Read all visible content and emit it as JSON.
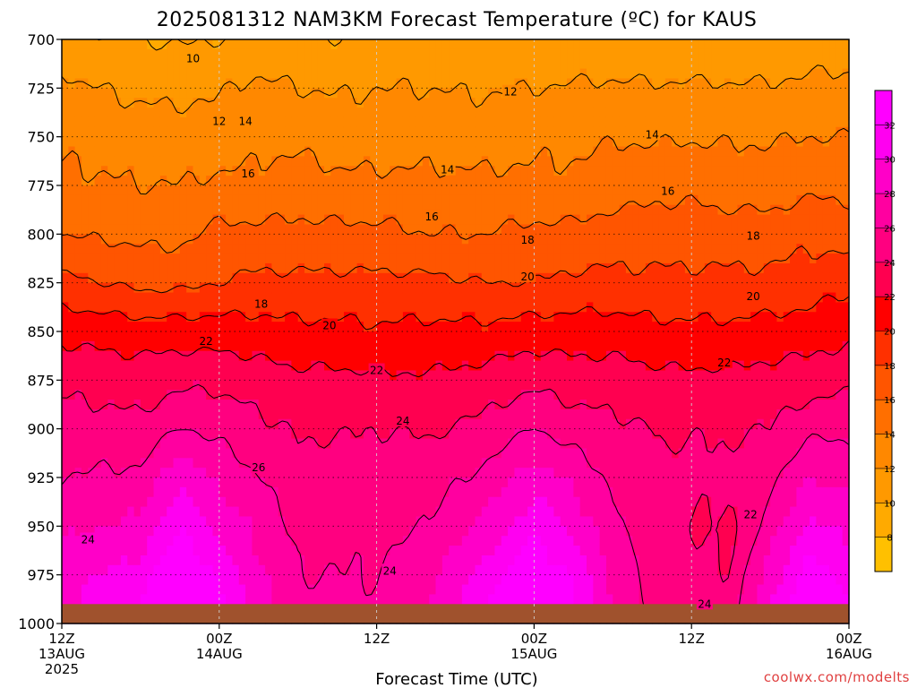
{
  "chart_data": {
    "type": "heatmap",
    "title": "2025081312 NAM3KM Forecast Temperature (ºC) for KAUS",
    "xlabel": "Forecast Time (UTC)",
    "credit": "coolwx.com/modelts",
    "y_axis": {
      "unit": "hPa",
      "inverted": true,
      "range": [
        1000,
        700
      ],
      "ticks": [
        700,
        725,
        750,
        775,
        800,
        825,
        850,
        875,
        900,
        925,
        950,
        975,
        1000
      ]
    },
    "x_axis": {
      "range_hours": [
        0,
        60
      ],
      "ticks": [
        {
          "hour": 0,
          "line1": "12Z",
          "line2": "13AUG",
          "line3": "2025"
        },
        {
          "hour": 12,
          "line1": "00Z",
          "line2": "14AUG",
          "line3": ""
        },
        {
          "hour": 24,
          "line1": "12Z",
          "line2": "",
          "line3": ""
        },
        {
          "hour": 36,
          "line1": "00Z",
          "line2": "15AUG",
          "line3": ""
        },
        {
          "hour": 48,
          "line1": "12Z",
          "line2": "",
          "line3": ""
        },
        {
          "hour": 60,
          "line1": "00Z",
          "line2": "16AUG",
          "line3": ""
        }
      ]
    },
    "grid": true,
    "colorbar": {
      "levels": [
        6,
        8,
        10,
        12,
        14,
        16,
        18,
        20,
        22,
        24,
        26,
        28,
        30,
        32,
        34
      ],
      "labels": [
        "8",
        "10",
        "12",
        "14",
        "16",
        "18",
        "20",
        "22",
        "24",
        "26",
        "28",
        "30",
        "32"
      ],
      "colors": [
        "#ffc000",
        "#ffaa00",
        "#ff9900",
        "#ff8800",
        "#ff6f00",
        "#ff5500",
        "#ff3000",
        "#ff0000",
        "#ff0050",
        "#ff0080",
        "#ff00a0",
        "#ff00c8",
        "#ff00f0",
        "#ff00ff"
      ]
    },
    "contour_levels": [
      10,
      12,
      14,
      16,
      18,
      20,
      22,
      24,
      26
    ],
    "contour_labels": [
      {
        "text": "10",
        "hour": 10.0,
        "p": 710
      },
      {
        "text": "12",
        "hour": 12.0,
        "p": 742
      },
      {
        "text": "14",
        "hour": 14.0,
        "p": 742
      },
      {
        "text": "16",
        "hour": 14.2,
        "p": 769
      },
      {
        "text": "14",
        "hour": 29.4,
        "p": 767
      },
      {
        "text": "16",
        "hour": 28.2,
        "p": 791
      },
      {
        "text": "12",
        "hour": 34.2,
        "p": 727
      },
      {
        "text": "18",
        "hour": 35.5,
        "p": 803
      },
      {
        "text": "20",
        "hour": 35.5,
        "p": 822
      },
      {
        "text": "14",
        "hour": 45.0,
        "p": 749
      },
      {
        "text": "16",
        "hour": 46.2,
        "p": 778
      },
      {
        "text": "18",
        "hour": 52.7,
        "p": 801
      },
      {
        "text": "20",
        "hour": 52.7,
        "p": 832
      },
      {
        "text": "18",
        "hour": 15.2,
        "p": 836
      },
      {
        "text": "20",
        "hour": 20.4,
        "p": 847
      },
      {
        "text": "22",
        "hour": 11.0,
        "p": 855
      },
      {
        "text": "22",
        "hour": 24.0,
        "p": 870
      },
      {
        "text": "22",
        "hour": 50.5,
        "p": 866
      },
      {
        "text": "24",
        "hour": 26.0,
        "p": 896
      },
      {
        "text": "26",
        "hour": 15.0,
        "p": 920
      },
      {
        "text": "24",
        "hour": 2.0,
        "p": 957
      },
      {
        "text": "24",
        "hour": 25.0,
        "p": 973
      },
      {
        "text": "22",
        "hour": 52.5,
        "p": 944
      },
      {
        "text": "24",
        "hour": 49.0,
        "p": 990
      }
    ],
    "profiles": [
      {
        "hour": 0,
        "t": [
          10.5,
          12.5,
          13.5,
          14.5,
          16.0,
          18.5,
          21.5,
          23.5,
          25.0,
          26.0,
          27.5,
          29.0,
          30.0
        ]
      },
      {
        "hour": 6,
        "t": [
          10.0,
          11.5,
          13.0,
          14.0,
          15.5,
          17.5,
          21.0,
          23.0,
          24.5,
          26.5,
          28.5,
          31.0,
          33.0
        ]
      },
      {
        "hour": 9,
        "t": [
          9.8,
          11.5,
          13.0,
          14.0,
          15.5,
          17.5,
          21.0,
          23.5,
          26.0,
          29.5,
          32.0,
          34.0,
          35.5
        ]
      },
      {
        "hour": 12,
        "t": [
          10.0,
          11.8,
          12.6,
          14.5,
          16.5,
          18.0,
          21.0,
          23.5,
          25.5,
          27.5,
          29.5,
          31.5,
          33.5
        ]
      },
      {
        "hour": 15,
        "t": [
          10.5,
          12.5,
          13.5,
          14.5,
          16.5,
          18.5,
          20.8,
          23.0,
          24.5,
          26.0,
          27.5,
          28.5,
          29.0
        ]
      },
      {
        "hour": 18,
        "t": [
          10.5,
          12.0,
          13.5,
          15.0,
          16.5,
          18.5,
          20.5,
          22.5,
          23.8,
          24.8,
          25.5,
          26.0,
          27.0
        ]
      },
      {
        "hour": 21,
        "t": [
          10.0,
          11.8,
          13.0,
          14.5,
          16.5,
          18.5,
          20.5,
          22.5,
          23.8,
          24.8,
          25.5,
          26.0,
          26.5
        ]
      },
      {
        "hour": 24,
        "t": [
          10.8,
          12.0,
          13.0,
          14.5,
          16.5,
          18.5,
          20.3,
          22.3,
          24.0,
          24.8,
          25.5,
          26.0,
          26.5
        ]
      },
      {
        "hour": 28,
        "t": [
          10.5,
          12.0,
          13.2,
          14.5,
          16.0,
          18.5,
          20.5,
          22.3,
          23.8,
          25.0,
          26.0,
          27.5,
          28.5
        ]
      },
      {
        "hour": 32,
        "t": [
          10.5,
          11.8,
          13.0,
          14.5,
          16.0,
          18.0,
          20.5,
          22.8,
          24.5,
          26.5,
          28.5,
          30.5,
          32.5
        ]
      },
      {
        "hour": 36,
        "t": [
          10.5,
          12.0,
          13.5,
          14.5,
          16.5,
          18.0,
          21.0,
          23.5,
          26.0,
          29.0,
          31.5,
          34.0,
          35.5
        ]
      },
      {
        "hour": 39,
        "t": [
          10.5,
          12.2,
          13.5,
          14.5,
          16.5,
          18.5,
          21.0,
          23.0,
          25.0,
          27.5,
          29.5,
          31.5,
          33.0
        ]
      },
      {
        "hour": 42,
        "t": [
          10.5,
          12.3,
          13.8,
          15.0,
          17.0,
          18.5,
          21.0,
          23.0,
          24.5,
          25.5,
          26.5,
          27.5,
          28.0
        ]
      },
      {
        "hour": 46,
        "t": [
          10.3,
          12.2,
          13.8,
          15.5,
          17.0,
          18.5,
          20.5,
          22.5,
          23.8,
          24.5,
          24.5,
          24.5,
          25.0
        ]
      },
      {
        "hour": 48,
        "t": [
          10.3,
          12.3,
          13.8,
          15.5,
          17.0,
          18.5,
          20.5,
          22.5,
          23.8,
          24.5,
          24.0,
          24.2,
          24.7
        ]
      },
      {
        "hour": 51,
        "t": [
          10.2,
          12.2,
          13.8,
          15.0,
          17.0,
          18.5,
          20.5,
          22.5,
          23.8,
          24.5,
          23.5,
          24.2,
          24.7
        ]
      },
      {
        "hour": 54,
        "t": [
          10.5,
          12.2,
          13.8,
          15.0,
          17.0,
          18.5,
          20.8,
          22.8,
          24.0,
          25.5,
          27.0,
          29.0,
          31.0
        ]
      },
      {
        "hour": 57,
        "t": [
          10.8,
          12.5,
          14.0,
          15.5,
          17.5,
          19.0,
          21.0,
          23.0,
          25.5,
          28.0,
          30.5,
          33.0,
          34.5
        ]
      },
      {
        "hour": 60,
        "t": [
          11.0,
          12.5,
          14.0,
          15.5,
          17.0,
          19.5,
          21.5,
          23.5,
          25.5,
          27.5,
          29.5,
          31.5,
          33.0
        ]
      }
    ],
    "ground": {
      "top_p": 990,
      "color": "#a0522d"
    }
  }
}
